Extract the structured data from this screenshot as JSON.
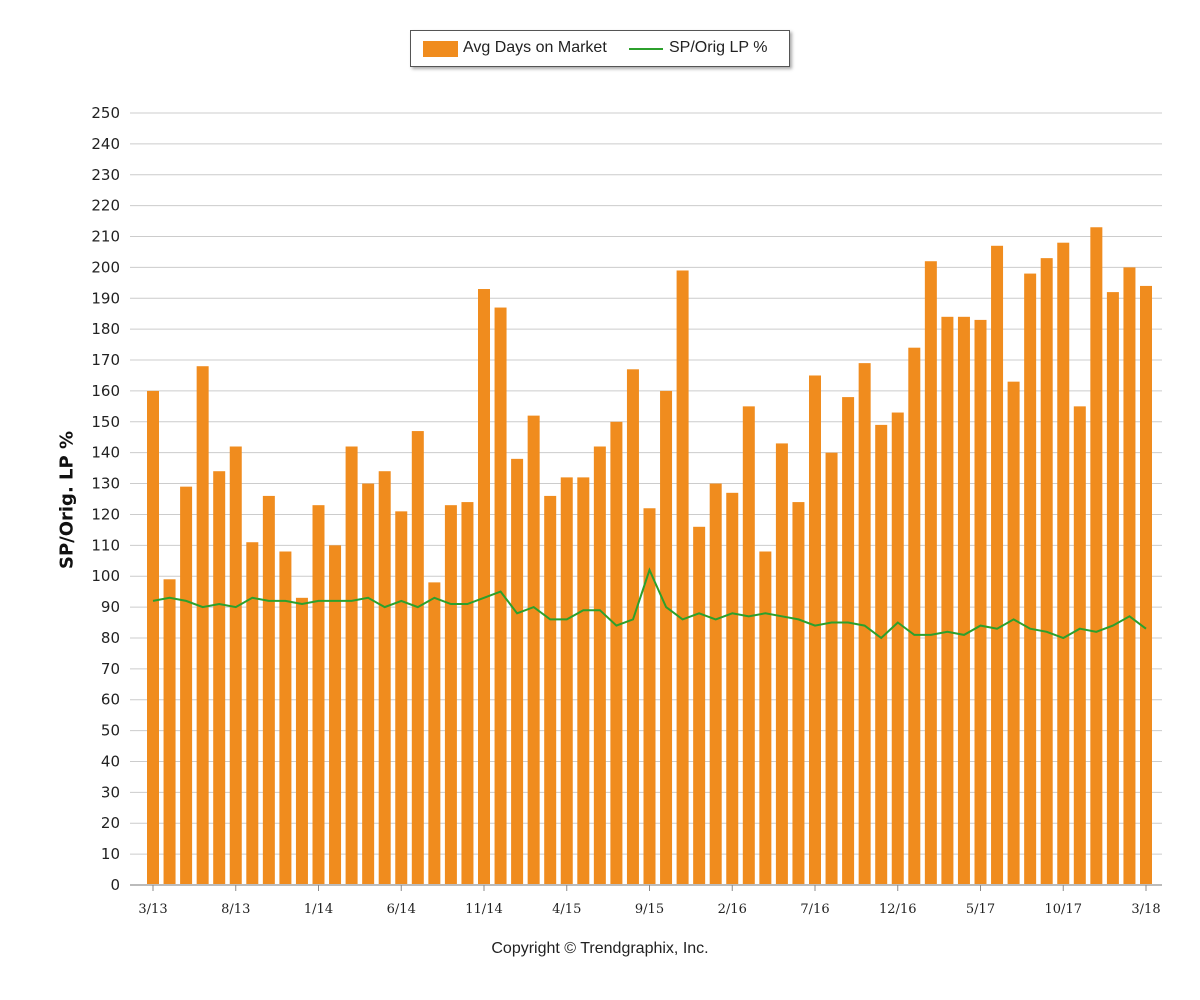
{
  "legend": {
    "bar_label": "Avg Days on Market",
    "line_label": "SP/Orig LP %"
  },
  "copyright": "Copyright © Trendgraphix, Inc.",
  "chart_data": {
    "type": "bar",
    "ylabel": "SP/Orig. LP %",
    "ylim": [
      0,
      250
    ],
    "y_ticks": [
      0,
      10,
      20,
      30,
      40,
      50,
      60,
      70,
      80,
      90,
      100,
      110,
      120,
      130,
      140,
      150,
      160,
      170,
      180,
      190,
      200,
      210,
      220,
      230,
      240,
      250
    ],
    "grid": true,
    "legend_position": "top-center",
    "categories": [
      "3/13",
      "4/13",
      "5/13",
      "6/13",
      "7/13",
      "8/13",
      "9/13",
      "10/13",
      "11/13",
      "12/13",
      "1/14",
      "2/14",
      "3/14",
      "4/14",
      "5/14",
      "6/14",
      "7/14",
      "8/14",
      "9/14",
      "10/14",
      "11/14",
      "12/14",
      "1/15",
      "2/15",
      "3/15",
      "4/15",
      "5/15",
      "6/15",
      "7/15",
      "8/15",
      "9/15",
      "10/15",
      "11/15",
      "12/15",
      "1/16",
      "2/16",
      "3/16",
      "4/16",
      "5/16",
      "6/16",
      "7/16",
      "8/16",
      "9/16",
      "10/16",
      "11/16",
      "12/16",
      "1/17",
      "2/17",
      "3/17",
      "4/17",
      "5/17",
      "6/17",
      "7/17",
      "8/17",
      "9/17",
      "10/17",
      "11/17",
      "12/17",
      "1/18",
      "2/18",
      "3/18"
    ],
    "x_tick_labels": [
      "3/13",
      "8/13",
      "1/14",
      "6/14",
      "11/14",
      "4/15",
      "9/15",
      "2/16",
      "7/16",
      "12/16",
      "5/17",
      "10/17",
      "3/18"
    ],
    "series": [
      {
        "name": "Avg Days on Market",
        "kind": "bar",
        "color": "#f08c1e",
        "values": [
          160,
          99,
          129,
          168,
          134,
          142,
          111,
          126,
          108,
          93,
          123,
          110,
          142,
          130,
          134,
          121,
          147,
          98,
          123,
          124,
          193,
          187,
          138,
          152,
          126,
          132,
          132,
          142,
          150,
          167,
          122,
          160,
          199,
          116,
          130,
          127,
          155,
          108,
          143,
          124,
          165,
          140,
          158,
          169,
          149,
          153,
          174,
          202,
          184,
          184,
          183,
          207,
          163,
          198,
          203,
          208,
          155,
          213,
          192,
          200,
          194
        ]
      },
      {
        "name": "SP/Orig LP %",
        "kind": "line",
        "color": "#2ca02c",
        "values": [
          92,
          93,
          92,
          90,
          91,
          90,
          93,
          92,
          92,
          91,
          92,
          92,
          92,
          93,
          90,
          92,
          90,
          93,
          91,
          91,
          93,
          95,
          88,
          90,
          86,
          86,
          89,
          89,
          84,
          86,
          102,
          90,
          86,
          88,
          86,
          88,
          87,
          88,
          87,
          86,
          84,
          85,
          85,
          84,
          80,
          85,
          81,
          81,
          82,
          81,
          84,
          83,
          86,
          83,
          82,
          80,
          83,
          82,
          84,
          87,
          83
        ]
      }
    ]
  }
}
